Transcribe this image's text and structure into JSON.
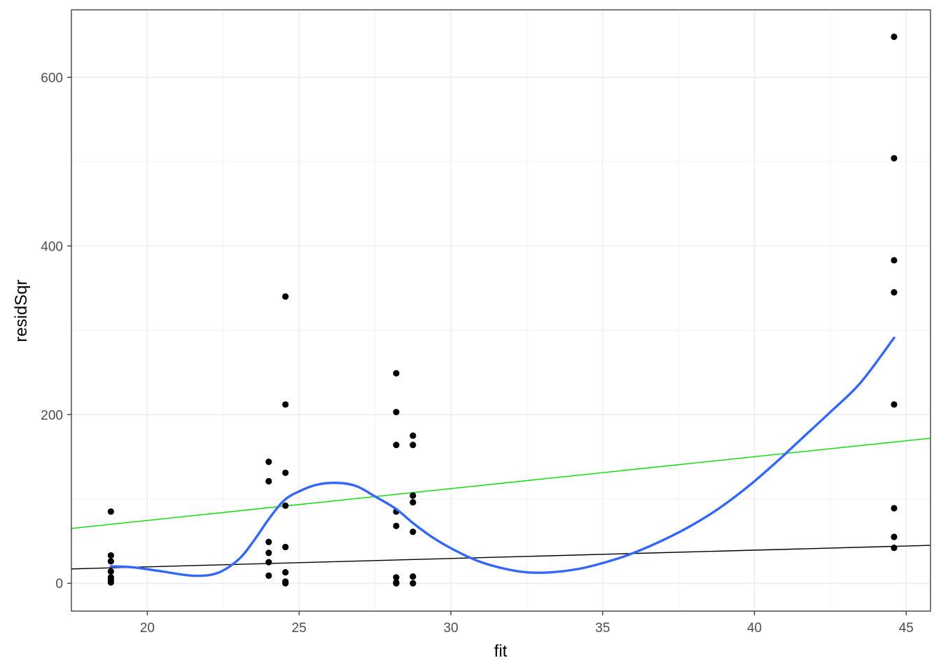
{
  "chart_data": {
    "type": "scatter",
    "xlabel": "fit",
    "ylabel": "residSqr",
    "xlim": [
      17.5,
      45.8
    ],
    "ylim": [
      -33,
      680
    ],
    "x_major_ticks": [
      20,
      25,
      30,
      35,
      40,
      45
    ],
    "x_minor_ticks": [
      22.5,
      27.5,
      32.5,
      37.5,
      42.5
    ],
    "y_major_ticks": [
      0,
      200,
      400,
      600
    ],
    "y_minor_ticks": [
      100,
      300,
      500
    ],
    "x_tick_labels": [
      "20",
      "25",
      "30",
      "35",
      "40",
      "45"
    ],
    "y_tick_labels": [
      "0",
      "200",
      "400",
      "600"
    ],
    "grid": true,
    "points": [
      {
        "x": 18.8,
        "y": 85
      },
      {
        "x": 18.8,
        "y": 33
      },
      {
        "x": 18.8,
        "y": 26
      },
      {
        "x": 18.8,
        "y": 14
      },
      {
        "x": 18.8,
        "y": 7
      },
      {
        "x": 18.8,
        "y": 4
      },
      {
        "x": 18.8,
        "y": 1
      },
      {
        "x": 24.0,
        "y": 144
      },
      {
        "x": 24.0,
        "y": 121
      },
      {
        "x": 24.0,
        "y": 49
      },
      {
        "x": 24.0,
        "y": 36
      },
      {
        "x": 24.0,
        "y": 25
      },
      {
        "x": 24.0,
        "y": 9
      },
      {
        "x": 24.55,
        "y": 340
      },
      {
        "x": 24.55,
        "y": 212
      },
      {
        "x": 24.55,
        "y": 131
      },
      {
        "x": 24.55,
        "y": 92
      },
      {
        "x": 24.55,
        "y": 43
      },
      {
        "x": 24.55,
        "y": 13
      },
      {
        "x": 24.55,
        "y": 2
      },
      {
        "x": 24.55,
        "y": 0
      },
      {
        "x": 28.2,
        "y": 249
      },
      {
        "x": 28.2,
        "y": 203
      },
      {
        "x": 28.2,
        "y": 164
      },
      {
        "x": 28.2,
        "y": 85
      },
      {
        "x": 28.2,
        "y": 68
      },
      {
        "x": 28.2,
        "y": 7
      },
      {
        "x": 28.2,
        "y": 1
      },
      {
        "x": 28.2,
        "y": 0
      },
      {
        "x": 28.75,
        "y": 175
      },
      {
        "x": 28.75,
        "y": 164
      },
      {
        "x": 28.75,
        "y": 104
      },
      {
        "x": 28.75,
        "y": 96
      },
      {
        "x": 28.75,
        "y": 61
      },
      {
        "x": 28.75,
        "y": 8
      },
      {
        "x": 28.75,
        "y": 0
      },
      {
        "x": 44.6,
        "y": 648
      },
      {
        "x": 44.6,
        "y": 504
      },
      {
        "x": 44.6,
        "y": 383
      },
      {
        "x": 44.6,
        "y": 345
      },
      {
        "x": 44.6,
        "y": 212
      },
      {
        "x": 44.6,
        "y": 89
      },
      {
        "x": 44.6,
        "y": 55
      },
      {
        "x": 44.6,
        "y": 42
      }
    ],
    "lines": [
      {
        "color": "#000000",
        "width": 1.4,
        "x": [
          17.5,
          45.8
        ],
        "y": [
          17,
          45
        ]
      },
      {
        "color": "#00dd00",
        "width": 1.4,
        "x": [
          17.5,
          45.8
        ],
        "y": [
          65,
          172
        ]
      }
    ],
    "smooth": {
      "color": "#3366ff",
      "width": 3.4,
      "x": [
        18.8,
        19.5,
        20.5,
        21.5,
        22.3,
        23.0,
        23.5,
        24.0,
        24.5,
        25.0,
        25.6,
        26.3,
        26.9,
        27.5,
        28.2,
        28.8,
        29.5,
        30.3,
        31.0,
        31.8,
        32.5,
        33.3,
        34.2,
        35.0,
        35.8,
        36.8,
        37.8,
        38.8,
        39.8,
        40.7,
        41.6,
        42.5,
        43.5,
        44.6
      ],
      "y": [
        20,
        19,
        14,
        9,
        12,
        28,
        50,
        76,
        98,
        109,
        117,
        119,
        115,
        103,
        88,
        70,
        52,
        36,
        25,
        17,
        13,
        13,
        17,
        24,
        33,
        48,
        66,
        88,
        115,
        143,
        173,
        203,
        238,
        291
      ]
    },
    "point_color": "#000000"
  }
}
